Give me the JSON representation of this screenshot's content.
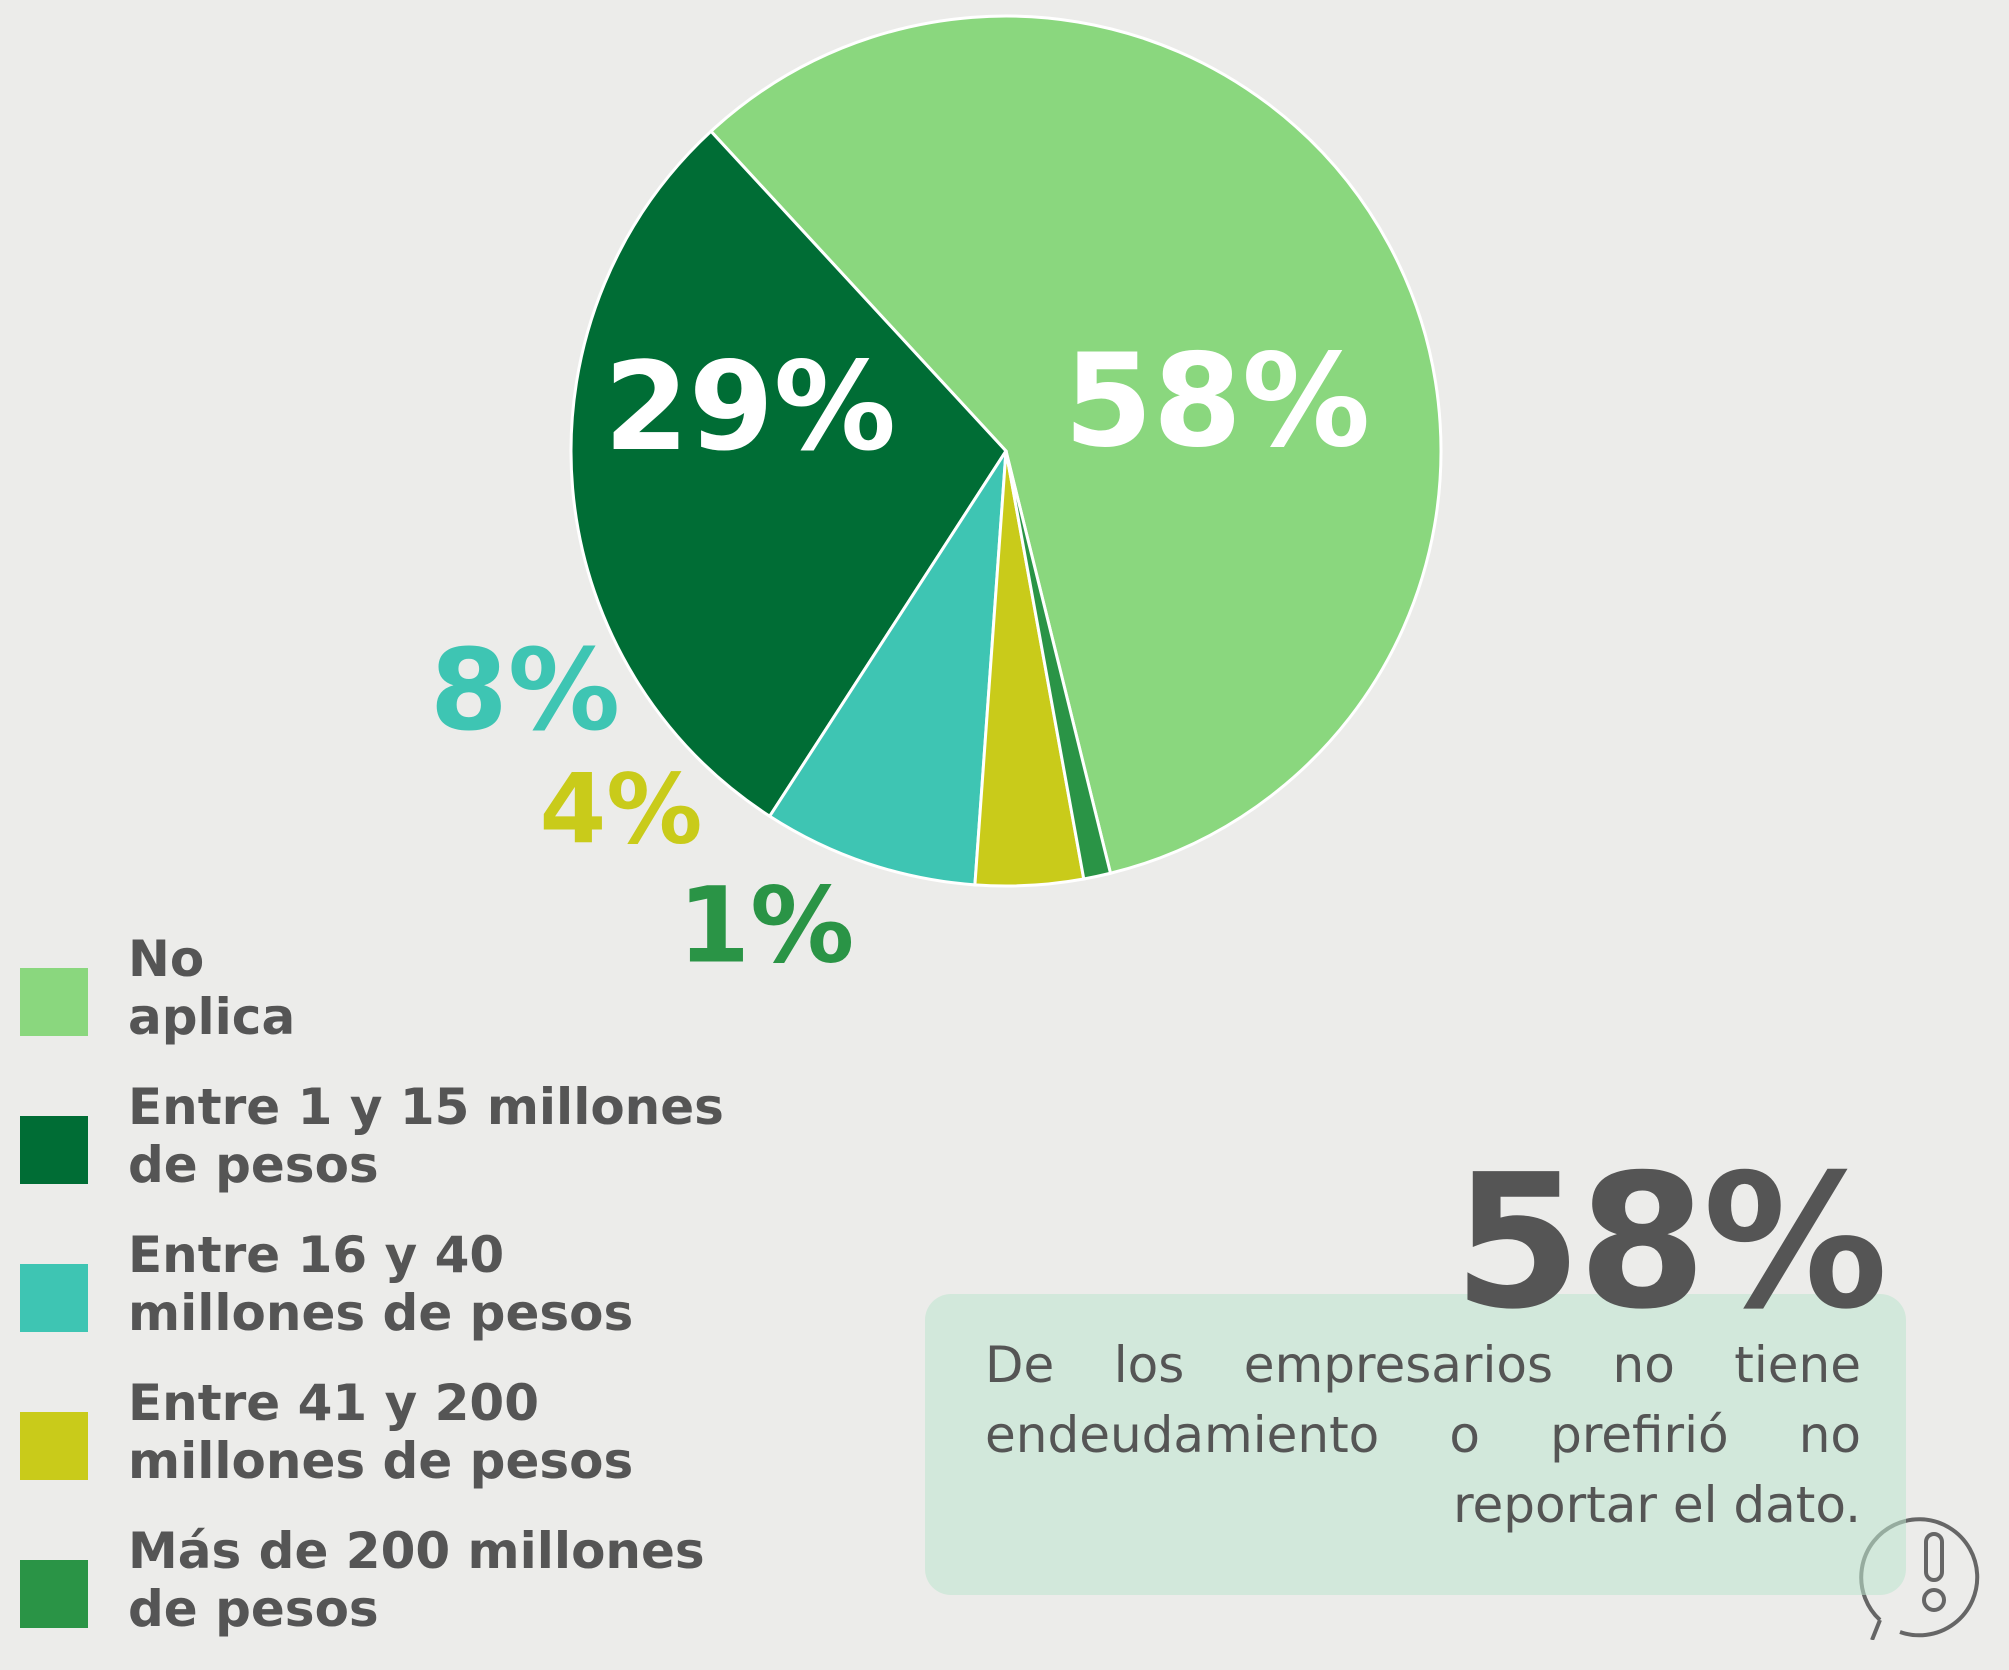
{
  "chart_data": {
    "type": "pie",
    "categories": [
      "No aplica",
      "Entre 1 y 15 millones de pesos",
      "Entre 16 y 40 millones de pesos",
      "Entre 41 y 200 millones de pesos",
      "Más de 200 millones de pesos"
    ],
    "values": [
      58,
      29,
      8,
      4,
      1
    ],
    "value_labels": [
      "58%",
      "29%",
      "8%",
      "4%",
      "1%"
    ],
    "colors": [
      "#8ad77e",
      "#006d35",
      "#3ec5b3",
      "#c9cb1a",
      "#2a9446"
    ],
    "legend": "bottom-left"
  },
  "callout": {
    "headline": "58%",
    "text": "De los empresarios no tiene endeudamiento o prefirió no reportar el dato."
  }
}
